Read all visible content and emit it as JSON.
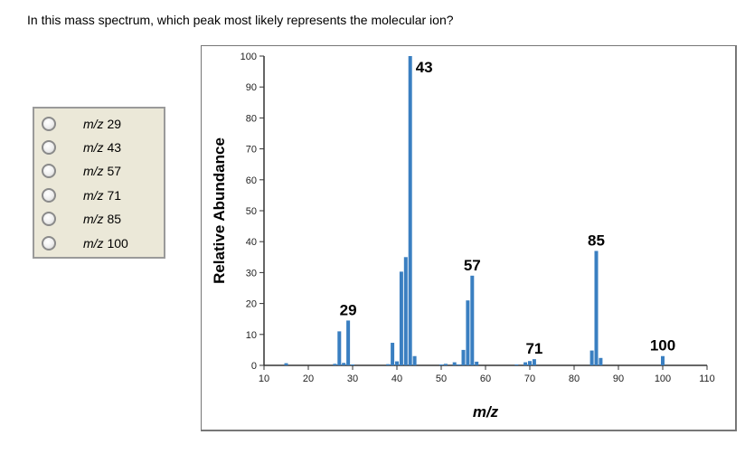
{
  "question": "In this mass spectrum, which peak most likely represents the molecular ion?",
  "options": [
    {
      "prefix": "m/z",
      "value": "29"
    },
    {
      "prefix": "m/z",
      "value": "43"
    },
    {
      "prefix": "m/z",
      "value": "57"
    },
    {
      "prefix": "m/z",
      "value": "71"
    },
    {
      "prefix": "m/z",
      "value": "85"
    },
    {
      "prefix": "m/z",
      "value": "100"
    }
  ],
  "chart_data": {
    "type": "bar",
    "title": "",
    "xlabel": "m/z",
    "ylabel": "Relative Abundance",
    "xlim": [
      10,
      110
    ],
    "ylim": [
      0,
      100
    ],
    "xticks": [
      10,
      20,
      30,
      40,
      50,
      60,
      70,
      80,
      90,
      100,
      110
    ],
    "yticks": [
      0,
      10,
      20,
      30,
      40,
      50,
      60,
      70,
      80,
      90,
      100
    ],
    "grid": false,
    "bar_color": "#3a7fc1",
    "x": [
      15,
      26,
      27,
      28,
      29,
      30,
      38,
      39,
      40,
      41,
      42,
      43,
      44,
      50,
      51,
      53,
      54,
      55,
      56,
      57,
      58,
      67,
      69,
      70,
      71,
      84,
      85,
      86,
      100
    ],
    "values": [
      0.7,
      0.5,
      11,
      0.8,
      14.5,
      0.3,
      0.4,
      7.3,
      1.3,
      30.3,
      35,
      100,
      3,
      0.3,
      0.5,
      1,
      0.3,
      5,
      21,
      29,
      1.2,
      0.3,
      1,
      1.4,
      2,
      4.8,
      37,
      2.4,
      3
    ],
    "annotations": [
      {
        "x": 29,
        "y": 14.5,
        "text": "29"
      },
      {
        "x": 43,
        "y": 100,
        "text": "43"
      },
      {
        "x": 57,
        "y": 29,
        "text": "57"
      },
      {
        "x": 71,
        "y": 2,
        "text": "71"
      },
      {
        "x": 85,
        "y": 37,
        "text": "85"
      },
      {
        "x": 100,
        "y": 3,
        "text": "100"
      }
    ]
  }
}
